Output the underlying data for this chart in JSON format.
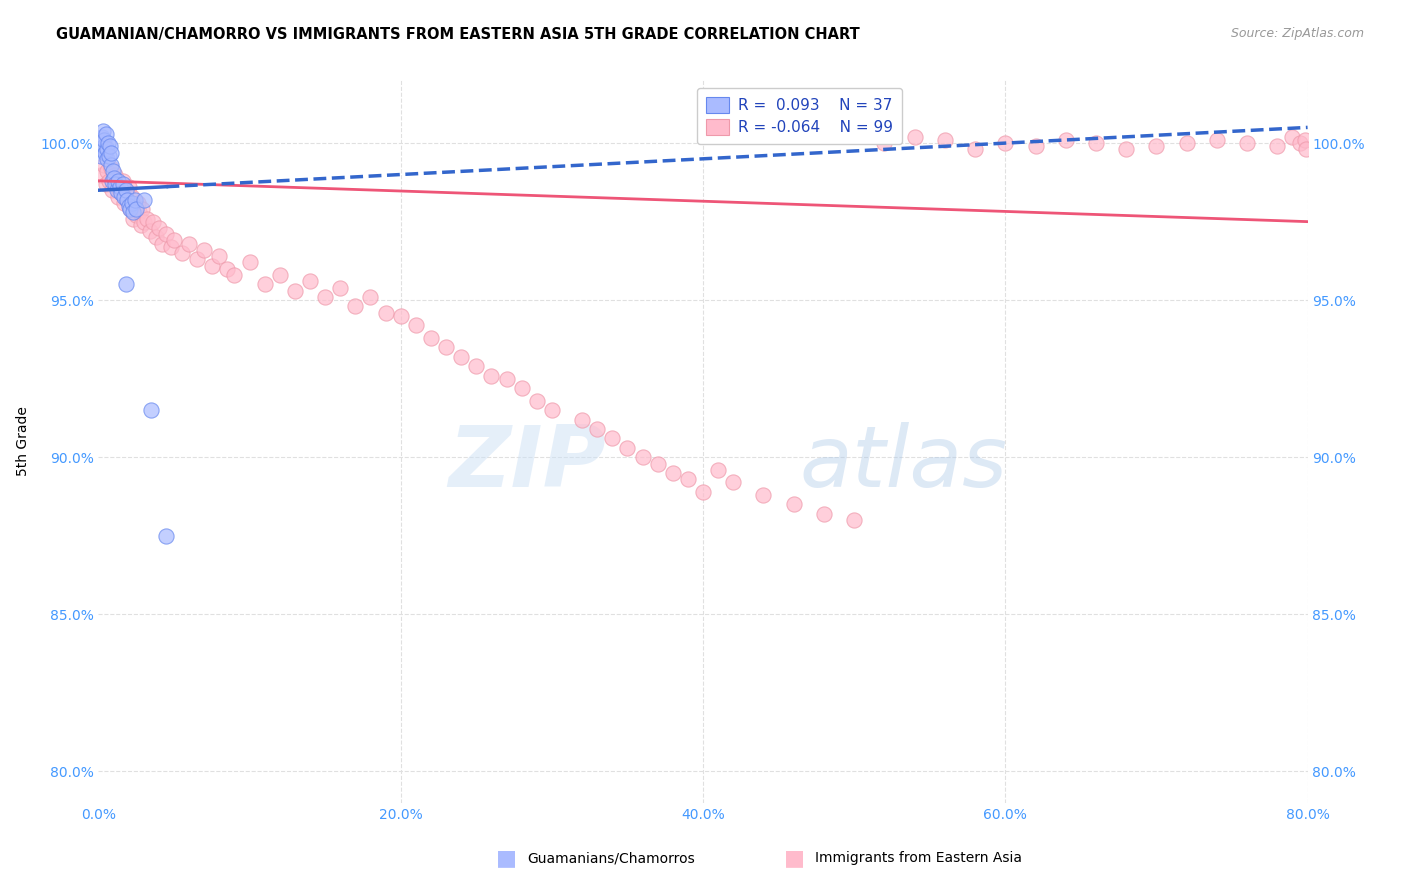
{
  "title": "GUAMANIAN/CHAMORRO VS IMMIGRANTS FROM EASTERN ASIA 5TH GRADE CORRELATION CHART",
  "source": "Source: ZipAtlas.com",
  "ylabel": "5th Grade",
  "x_tick_labels": [
    "0.0%",
    "20.0%",
    "40.0%",
    "60.0%",
    "80.0%"
  ],
  "x_tick_vals": [
    0.0,
    20.0,
    40.0,
    60.0,
    80.0
  ],
  "y_tick_labels": [
    "80.0%",
    "85.0%",
    "90.0%",
    "95.0%",
    "100.0%"
  ],
  "y_tick_vals": [
    80.0,
    85.0,
    90.0,
    95.0,
    100.0
  ],
  "xlim": [
    0.0,
    80.0
  ],
  "ylim": [
    79.0,
    102.0
  ],
  "R_blue": 0.093,
  "N_blue": 37,
  "R_pink": -0.064,
  "N_pink": 99,
  "blue_scatter_color": "#aabbff",
  "blue_scatter_edge": "#6688ee",
  "pink_scatter_color": "#ffbbcc",
  "pink_scatter_edge": "#ee99aa",
  "blue_line_color": "#3366cc",
  "pink_line_color": "#ee5577",
  "legend_label_blue": "Guamanians/Chamorros",
  "legend_label_pink": "Immigrants from Eastern Asia",
  "watermark_zip": "ZIP",
  "watermark_atlas": "atlas",
  "tick_color": "#4499ff",
  "grid_color": "#e0e0e0",
  "blue_x": [
    0.15,
    0.2,
    0.25,
    0.3,
    0.35,
    0.4,
    0.45,
    0.5,
    0.55,
    0.6,
    0.65,
    0.7,
    0.75,
    0.8,
    0.85,
    0.9,
    0.95,
    1.0,
    1.1,
    1.2,
    1.3,
    1.4,
    1.5,
    1.6,
    1.7,
    1.8,
    1.9,
    2.0,
    2.1,
    2.2,
    2.3,
    2.4,
    2.5,
    3.0,
    1.8,
    3.5,
    4.5
  ],
  "blue_y": [
    99.8,
    99.6,
    100.2,
    100.4,
    99.9,
    100.1,
    99.7,
    100.3,
    99.5,
    99.8,
    100.0,
    99.6,
    99.9,
    99.3,
    99.7,
    98.8,
    99.1,
    98.9,
    98.7,
    98.5,
    98.8,
    98.6,
    98.4,
    98.7,
    98.3,
    98.5,
    98.2,
    98.0,
    97.9,
    98.1,
    97.8,
    98.2,
    97.9,
    98.2,
    95.5,
    91.5,
    87.5
  ],
  "pink_x": [
    0.2,
    0.4,
    0.5,
    0.6,
    0.7,
    0.8,
    0.9,
    1.0,
    1.1,
    1.2,
    1.3,
    1.4,
    1.5,
    1.6,
    1.7,
    1.8,
    1.9,
    2.0,
    2.1,
    2.2,
    2.3,
    2.4,
    2.5,
    2.6,
    2.7,
    2.8,
    2.9,
    3.0,
    3.2,
    3.4,
    3.6,
    3.8,
    4.0,
    4.2,
    4.5,
    4.8,
    5.0,
    5.5,
    6.0,
    6.5,
    7.0,
    7.5,
    8.0,
    8.5,
    9.0,
    10.0,
    11.0,
    12.0,
    13.0,
    14.0,
    15.0,
    16.0,
    17.0,
    18.0,
    19.0,
    20.0,
    21.0,
    22.0,
    23.0,
    24.0,
    25.0,
    26.0,
    27.0,
    28.0,
    29.0,
    30.0,
    32.0,
    33.0,
    34.0,
    35.0,
    36.0,
    37.0,
    38.0,
    39.0,
    40.0,
    41.0,
    42.0,
    44.0,
    46.0,
    48.0,
    50.0,
    52.0,
    54.0,
    56.0,
    58.0,
    60.0,
    62.0,
    64.0,
    66.0,
    68.0,
    70.0,
    72.0,
    74.0,
    76.0,
    78.0,
    79.0,
    79.5,
    79.8,
    79.9
  ],
  "pink_y": [
    99.0,
    99.3,
    98.7,
    99.1,
    98.8,
    99.2,
    98.5,
    98.9,
    99.0,
    98.6,
    98.3,
    98.7,
    98.4,
    98.8,
    98.1,
    98.5,
    98.2,
    98.6,
    97.9,
    98.3,
    97.6,
    98.0,
    97.7,
    98.1,
    97.8,
    97.4,
    97.9,
    97.5,
    97.6,
    97.2,
    97.5,
    97.0,
    97.3,
    96.8,
    97.1,
    96.7,
    96.9,
    96.5,
    96.8,
    96.3,
    96.6,
    96.1,
    96.4,
    96.0,
    95.8,
    96.2,
    95.5,
    95.8,
    95.3,
    95.6,
    95.1,
    95.4,
    94.8,
    95.1,
    94.6,
    94.5,
    94.2,
    93.8,
    93.5,
    93.2,
    92.9,
    92.6,
    92.5,
    92.2,
    91.8,
    91.5,
    91.2,
    90.9,
    90.6,
    90.3,
    90.0,
    89.8,
    89.5,
    89.3,
    88.9,
    89.6,
    89.2,
    88.8,
    88.5,
    88.2,
    88.0,
    100.0,
    100.2,
    100.1,
    99.8,
    100.0,
    99.9,
    100.1,
    100.0,
    99.8,
    99.9,
    100.0,
    100.1,
    100.0,
    99.9,
    100.2,
    100.0,
    100.1,
    99.8
  ]
}
